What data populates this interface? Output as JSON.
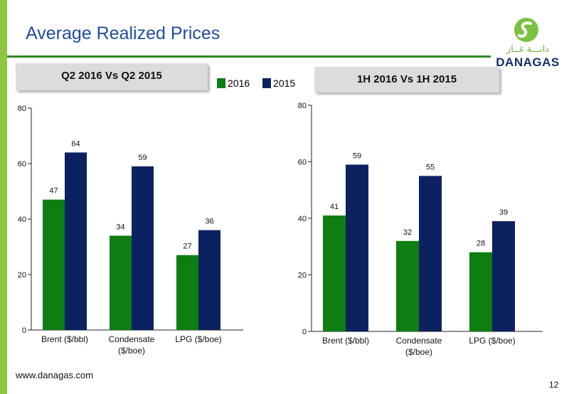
{
  "slide": {
    "title": "Average Realized Prices",
    "footer_url": "www.danagas.com",
    "page_number": "12"
  },
  "logo": {
    "arabic": "دانـــة غــاز",
    "text": "DANAGAS"
  },
  "legend": [
    {
      "name": "2016",
      "color": "#0e7d12"
    },
    {
      "name": "2015",
      "color": "#0c2260"
    }
  ],
  "chart_data": [
    {
      "type": "bar",
      "title": "Q2 2016 Vs Q2 2015",
      "categories": [
        "Brent ($/bbl)",
        "Condensate ($/boe)",
        "LPG ($/boe)"
      ],
      "series": [
        {
          "name": "2016",
          "values": [
            47,
            34,
            27
          ],
          "color": "#0e7d12"
        },
        {
          "name": "2015",
          "values": [
            64,
            59,
            36
          ],
          "color": "#0c2260"
        }
      ],
      "ylim": [
        0,
        80
      ],
      "yticks": [
        0,
        20,
        40,
        60,
        80
      ],
      "grid": false,
      "legend": "top-center"
    },
    {
      "type": "bar",
      "title": "1H 2016 Vs 1H 2015",
      "categories": [
        "Brent ($/bbl)",
        "Condensate ($/boe)",
        "LPG ($/boe)"
      ],
      "series": [
        {
          "name": "2016",
          "values": [
            41,
            32,
            28
          ],
          "color": "#0e7d12"
        },
        {
          "name": "2015",
          "values": [
            59,
            55,
            39
          ],
          "color": "#0c2260"
        }
      ],
      "ylim": [
        0,
        80
      ],
      "yticks": [
        0,
        20,
        40,
        60,
        80
      ],
      "grid": false,
      "legend": "top-center"
    }
  ]
}
